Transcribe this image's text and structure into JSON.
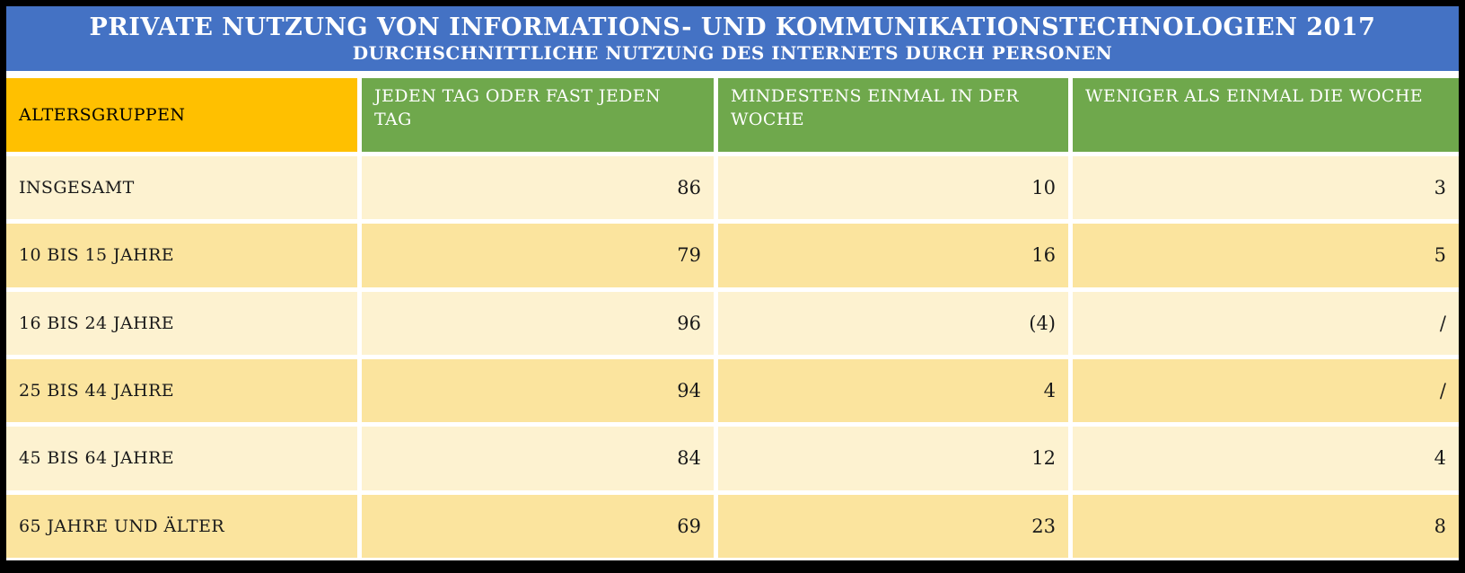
{
  "title": {
    "line1": "PRIVATE NUTZUNG VON INFORMATIONS- UND KOMMUNIKATIONSTECHNOLOGIEN 2017",
    "line2": "DURCHSCHNITTLICHE NUTZUNG DES INTERNETS DURCH PERSONEN"
  },
  "colors": {
    "title_bg": "#4472C4",
    "first_header_bg": "#FFC000",
    "header_bg": "#6FA84C",
    "row_light_bg": "#FDF2D0",
    "row_dark_bg": "#FBE49E",
    "frame": "#000000",
    "separator": "#FFFFFF",
    "header_text": "#FFFFFF",
    "body_text": "#1A1A1A"
  },
  "chart_data": {
    "type": "table",
    "title": "PRIVATE NUTZUNG VON INFORMATIONS- UND KOMMUNIKATIONSTECHNOLOGIEN 2017",
    "subtitle": "DURCHSCHNITTLICHE NUTZUNG DES INTERNETS DURCH PERSONEN",
    "columns": [
      "ALTERSGRUPPEN",
      "JEDEN TAG ODER FAST JEDEN TAG",
      "MINDESTENS EINMAL IN DER WOCHE",
      "WENIGER ALS EINMAL DIE WOCHE"
    ],
    "rows": [
      {
        "label": "INSGESAMT",
        "values": [
          "86",
          "10",
          "3"
        ]
      },
      {
        "label": "10 BIS 15 JAHRE",
        "values": [
          "79",
          "16",
          "5"
        ]
      },
      {
        "label": "16 BIS 24 JAHRE",
        "values": [
          "96",
          "(4)",
          "/"
        ]
      },
      {
        "label": "25 BIS 44 JAHRE",
        "values": [
          "94",
          "4",
          "/"
        ]
      },
      {
        "label": "45 BIS 64 JAHRE",
        "values": [
          "84",
          "12",
          "4"
        ]
      },
      {
        "label": "65 JAHRE UND ÄLTER",
        "values": [
          "69",
          "23",
          "8"
        ]
      }
    ]
  }
}
